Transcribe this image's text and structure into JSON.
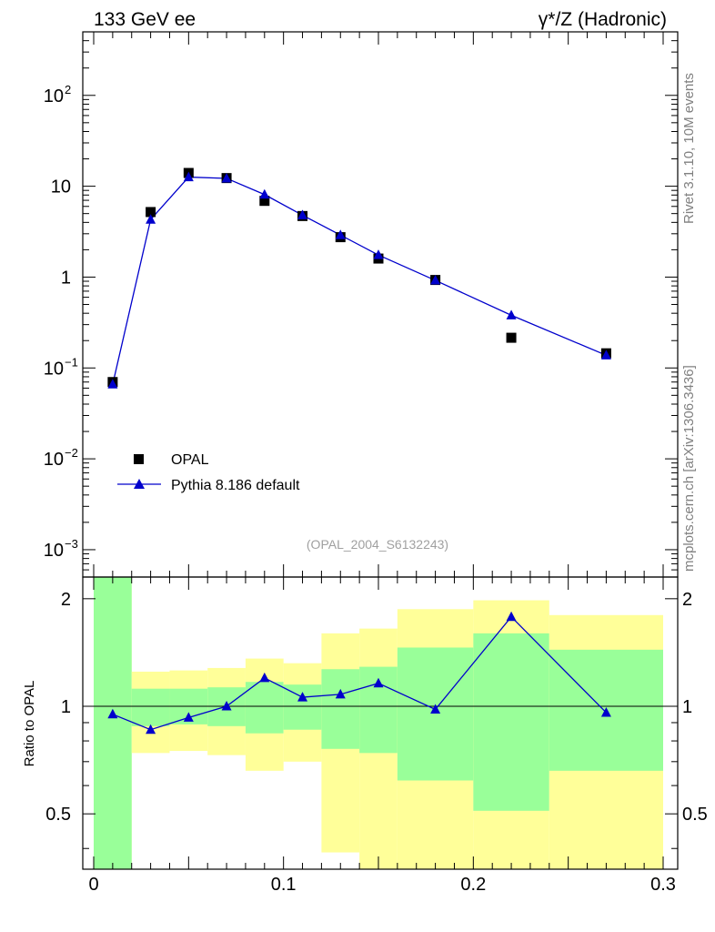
{
  "header": {
    "left_title": "133 GeV ee",
    "right_title": "γ*/Z (Hadronic)"
  },
  "side_labels": {
    "rivet": "Rivet 3.1.10,  10M events",
    "mcplots": "mcplots.cern.ch [arXiv:1306.3436]"
  },
  "chart_data": {
    "type": "scatter",
    "analysis_label": "(OPAL_2004_S6132243)",
    "x_ticks": [
      "0",
      "0.1",
      "0.2",
      "0.3"
    ],
    "xlim": [
      0,
      0.3
    ],
    "main_panel": {
      "yscale": "log",
      "ylim": [
        0.0005,
        500
      ],
      "y_ticks": [
        {
          "value": 0.001,
          "base": "10",
          "exp": "−3"
        },
        {
          "value": 0.01,
          "base": "10",
          "exp": "−2"
        },
        {
          "value": 0.1,
          "base": "10",
          "exp": "−1"
        },
        {
          "value": 1,
          "base": "1",
          "exp": ""
        },
        {
          "value": 10,
          "base": "10",
          "exp": ""
        },
        {
          "value": 100,
          "base": "10",
          "exp": "2"
        }
      ],
      "legend": {
        "placement": "bottom-left",
        "entries": [
          "OPAL",
          "Pythia 8.186 default"
        ]
      },
      "series": [
        {
          "name": "OPAL",
          "marker": "square",
          "color": "#000000",
          "x": [
            0.01,
            0.03,
            0.05,
            0.07,
            0.09,
            0.11,
            0.13,
            0.15,
            0.18,
            0.22,
            0.27
          ],
          "values": [
            0.07,
            5.2,
            14.0,
            12.3,
            6.9,
            4.7,
            2.75,
            1.6,
            0.93,
            0.215,
            0.145
          ]
        },
        {
          "name": "Pythia 8.186 default",
          "marker": "triangle",
          "color": "#0000cc",
          "x": [
            0.01,
            0.03,
            0.05,
            0.07,
            0.09,
            0.11,
            0.13,
            0.15,
            0.18,
            0.22,
            0.27
          ],
          "values": [
            0.066,
            4.3,
            12.6,
            12.2,
            8.1,
            4.8,
            2.9,
            1.75,
            0.92,
            0.38,
            0.138
          ]
        }
      ]
    },
    "ratio_panel": {
      "ylabel": "Ratio to OPAL",
      "ylim": [
        0.35,
        2.3
      ],
      "y_ticks": [
        "0.5",
        "1",
        "2"
      ],
      "y_tick_values": [
        0.5,
        1,
        2
      ],
      "bands": [
        {
          "x0": 0.0,
          "x1": 0.02,
          "green": [
            0.35,
            2.3
          ],
          "yellow": [
            0.35,
            2.3
          ]
        },
        {
          "x0": 0.02,
          "x1": 0.04,
          "green": [
            0.88,
            1.12
          ],
          "yellow": [
            0.74,
            1.25
          ]
        },
        {
          "x0": 0.04,
          "x1": 0.06,
          "green": [
            0.89,
            1.12
          ],
          "yellow": [
            0.75,
            1.26
          ]
        },
        {
          "x0": 0.06,
          "x1": 0.08,
          "green": [
            0.88,
            1.13
          ],
          "yellow": [
            0.73,
            1.28
          ]
        },
        {
          "x0": 0.08,
          "x1": 0.1,
          "green": [
            0.84,
            1.17
          ],
          "yellow": [
            0.66,
            1.36
          ]
        },
        {
          "x0": 0.1,
          "x1": 0.12,
          "green": [
            0.86,
            1.15
          ],
          "yellow": [
            0.7,
            1.32
          ]
        },
        {
          "x0": 0.12,
          "x1": 0.14,
          "green": [
            0.76,
            1.27
          ],
          "yellow": [
            0.39,
            1.6
          ]
        },
        {
          "x0": 0.14,
          "x1": 0.16,
          "green": [
            0.74,
            1.29
          ],
          "yellow": [
            0.35,
            1.65
          ]
        },
        {
          "x0": 0.16,
          "x1": 0.2,
          "green": [
            0.62,
            1.46
          ],
          "yellow": [
            0.35,
            1.87
          ]
        },
        {
          "x0": 0.2,
          "x1": 0.24,
          "green": [
            0.51,
            1.6
          ],
          "yellow": [
            0.35,
            1.98
          ]
        },
        {
          "x0": 0.24,
          "x1": 0.3,
          "green": [
            0.66,
            1.44
          ],
          "yellow": [
            0.35,
            1.8
          ]
        }
      ],
      "ratio_series": {
        "name": "Pythia 8.186 default",
        "x": [
          0.01,
          0.03,
          0.05,
          0.07,
          0.09,
          0.11,
          0.13,
          0.15,
          0.18,
          0.22,
          0.27
        ],
        "values": [
          0.95,
          0.86,
          0.93,
          1.0,
          1.2,
          1.06,
          1.08,
          1.16,
          0.98,
          1.78,
          0.96
        ]
      }
    }
  }
}
